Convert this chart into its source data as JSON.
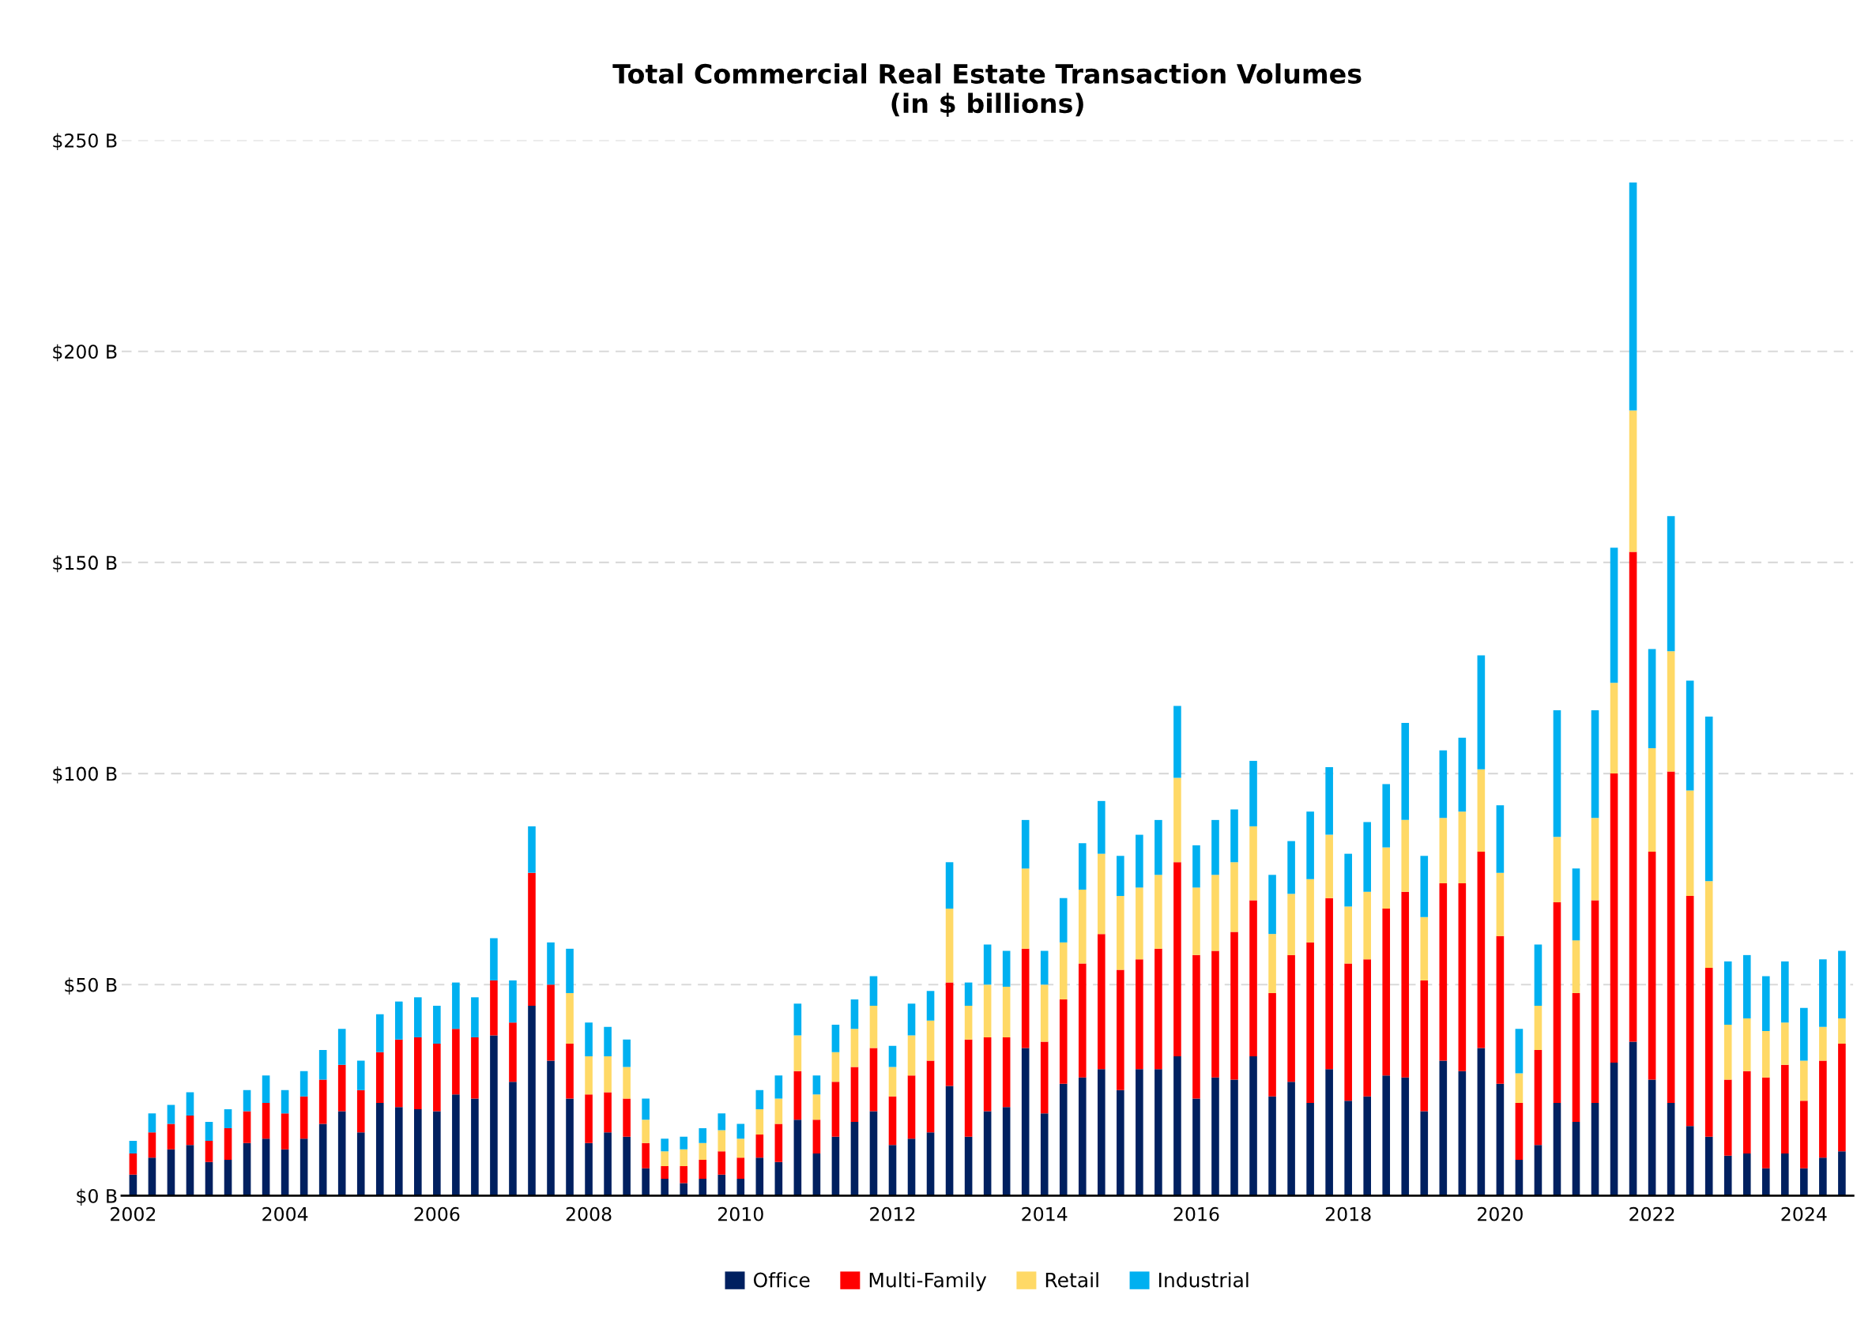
{
  "chart_data": {
    "type": "bar",
    "stacked": true,
    "title": "Total Commercial Real Estate Transaction Volumes\n(in $ billions)",
    "x": [
      2002,
      2002.25,
      2002.5,
      2002.75,
      2003,
      2003.25,
      2003.5,
      2003.75,
      2004,
      2004.25,
      2004.5,
      2004.75,
      2005,
      2005.25,
      2005.5,
      2005.75,
      2006,
      2006.25,
      2006.5,
      2006.75,
      2007,
      2007.25,
      2007.5,
      2007.75,
      2008,
      2008.25,
      2008.5,
      2008.75,
      2009,
      2009.25,
      2009.5,
      2009.75,
      2010,
      2010.25,
      2010.5,
      2010.75,
      2011,
      2011.25,
      2011.5,
      2011.75,
      2012,
      2012.25,
      2012.5,
      2012.75,
      2013,
      2013.25,
      2013.5,
      2013.75,
      2014,
      2014.25,
      2014.5,
      2014.75,
      2015,
      2015.25,
      2015.5,
      2015.75,
      2016,
      2016.25,
      2016.5,
      2016.75,
      2017,
      2017.25,
      2017.5,
      2017.75,
      2018,
      2018.25,
      2018.5,
      2018.75,
      2019,
      2019.25,
      2019.5,
      2019.75,
      2020,
      2020.25,
      2020.5,
      2020.75,
      2021,
      2021.25,
      2021.5,
      2021.75,
      2022,
      2022.25,
      2022.5,
      2022.75,
      2023,
      2023.25,
      2023.5,
      2023.75,
      2024,
      2024.25,
      2024.5
    ],
    "series": [
      {
        "name": "Office",
        "color": "#002060",
        "values": [
          5,
          9,
          11,
          12,
          8,
          8.5,
          12.5,
          13.5,
          11,
          13.5,
          17,
          20,
          15,
          22,
          21,
          20.5,
          20,
          24,
          23,
          38,
          27,
          45,
          32,
          23,
          12.5,
          15,
          14,
          6.5,
          4,
          3,
          4,
          5,
          4,
          9,
          8,
          18,
          10,
          14,
          17.5,
          20,
          12,
          13.5,
          15,
          26,
          14,
          20,
          21,
          35,
          19.5,
          26.5,
          28,
          30,
          25,
          30,
          30,
          33,
          23,
          28,
          27.5,
          33,
          23.5,
          27,
          22,
          30,
          22.5,
          23.5,
          28.5,
          28,
          20,
          32,
          29.5,
          35,
          26.5,
          8.5,
          12,
          22,
          17.5,
          22,
          31.5,
          36.5,
          27.5,
          22,
          16.5,
          14,
          9.5,
          10,
          6.5,
          10,
          6.5,
          9,
          10.5
        ]
      },
      {
        "name": "Multi-Family",
        "color": "#ff0000",
        "values": [
          5,
          6,
          6,
          7,
          5,
          7.5,
          7.5,
          8.5,
          8.5,
          10,
          10.5,
          11,
          10,
          12,
          16,
          17,
          16,
          15.5,
          14.5,
          13,
          14,
          31.5,
          18,
          13,
          11.5,
          9.5,
          9,
          6,
          3,
          4,
          4.5,
          5.5,
          5,
          5.5,
          9,
          11.5,
          8,
          13,
          13,
          15,
          11.5,
          15,
          17,
          24.5,
          23,
          17.5,
          16.5,
          23.5,
          17,
          20,
          27,
          32,
          28.5,
          26,
          28.5,
          46,
          34,
          30,
          35,
          37,
          24.5,
          30,
          38,
          40.5,
          32.5,
          32.5,
          39.5,
          44,
          31,
          42,
          44.5,
          46.5,
          35,
          13.5,
          22.5,
          47.5,
          30.5,
          48,
          68.5,
          116,
          54,
          78.5,
          54.5,
          40,
          18,
          19.5,
          21.5,
          21,
          16,
          23,
          25.5
        ]
      },
      {
        "name": "Retail",
        "color": "#ffd966",
        "values": [
          null,
          null,
          null,
          null,
          null,
          null,
          null,
          null,
          null,
          null,
          null,
          null,
          null,
          null,
          null,
          null,
          null,
          null,
          null,
          null,
          null,
          null,
          null,
          12,
          9,
          8.5,
          7.5,
          5.5,
          3.5,
          4,
          4,
          5,
          4.5,
          6,
          6,
          8.5,
          6,
          7,
          9,
          10,
          7,
          9.5,
          9.5,
          17.5,
          8,
          12.5,
          12,
          19,
          13.5,
          13.5,
          17.5,
          19,
          17.5,
          17,
          17.5,
          20,
          16,
          18,
          16.5,
          17.5,
          14,
          14.5,
          15,
          15,
          13.5,
          16,
          14.5,
          17,
          15,
          15.5,
          17,
          19.5,
          15,
          7,
          10.5,
          15.5,
          12.5,
          19.5,
          21.5,
          33.5,
          24.5,
          28.5,
          25,
          20.5,
          13,
          12.5,
          11,
          10,
          9.5,
          8,
          6
        ]
      },
      {
        "name": "Industrial",
        "color": "#00b0f0",
        "values": [
          3,
          4.5,
          4.5,
          5.5,
          4.5,
          4.5,
          5,
          6.5,
          5.5,
          6,
          7,
          8.5,
          7,
          9,
          9,
          9.5,
          9,
          11,
          9.5,
          10,
          10,
          11,
          10,
          10.5,
          8,
          7,
          6.5,
          5,
          3,
          3,
          3.5,
          4,
          3.5,
          4.5,
          5.5,
          7.5,
          4.5,
          6.5,
          7,
          7,
          5,
          7.5,
          7,
          11,
          5.5,
          9.5,
          8.5,
          11.5,
          8,
          10.5,
          11,
          12.5,
          9.5,
          12.5,
          13,
          17,
          10,
          13,
          12.5,
          15.5,
          14,
          12.5,
          16,
          16,
          12.5,
          16.5,
          15,
          23,
          14.5,
          16,
          17.5,
          27,
          16,
          10.5,
          14.5,
          30,
          17,
          25.5,
          32,
          54,
          23.5,
          32,
          26,
          39,
          15,
          15,
          13,
          14.5,
          12.5,
          16,
          16
        ]
      }
    ],
    "xlim": [
      2001.85,
      2024.65
    ],
    "xticks": [
      2002,
      2004,
      2006,
      2008,
      2010,
      2012,
      2014,
      2016,
      2018,
      2020,
      2022,
      2024
    ],
    "ylim": [
      0,
      250
    ],
    "yticks": [
      {
        "value": 0,
        "label": "$0 B"
      },
      {
        "value": 50,
        "label": "$50 B"
      },
      {
        "value": 100,
        "label": "$100 B"
      },
      {
        "value": 150,
        "label": "$150 B"
      },
      {
        "value": 200,
        "label": "$200 B"
      },
      {
        "value": 250,
        "label": "$250 B"
      }
    ],
    "grid": "y",
    "legend": "bottom"
  }
}
